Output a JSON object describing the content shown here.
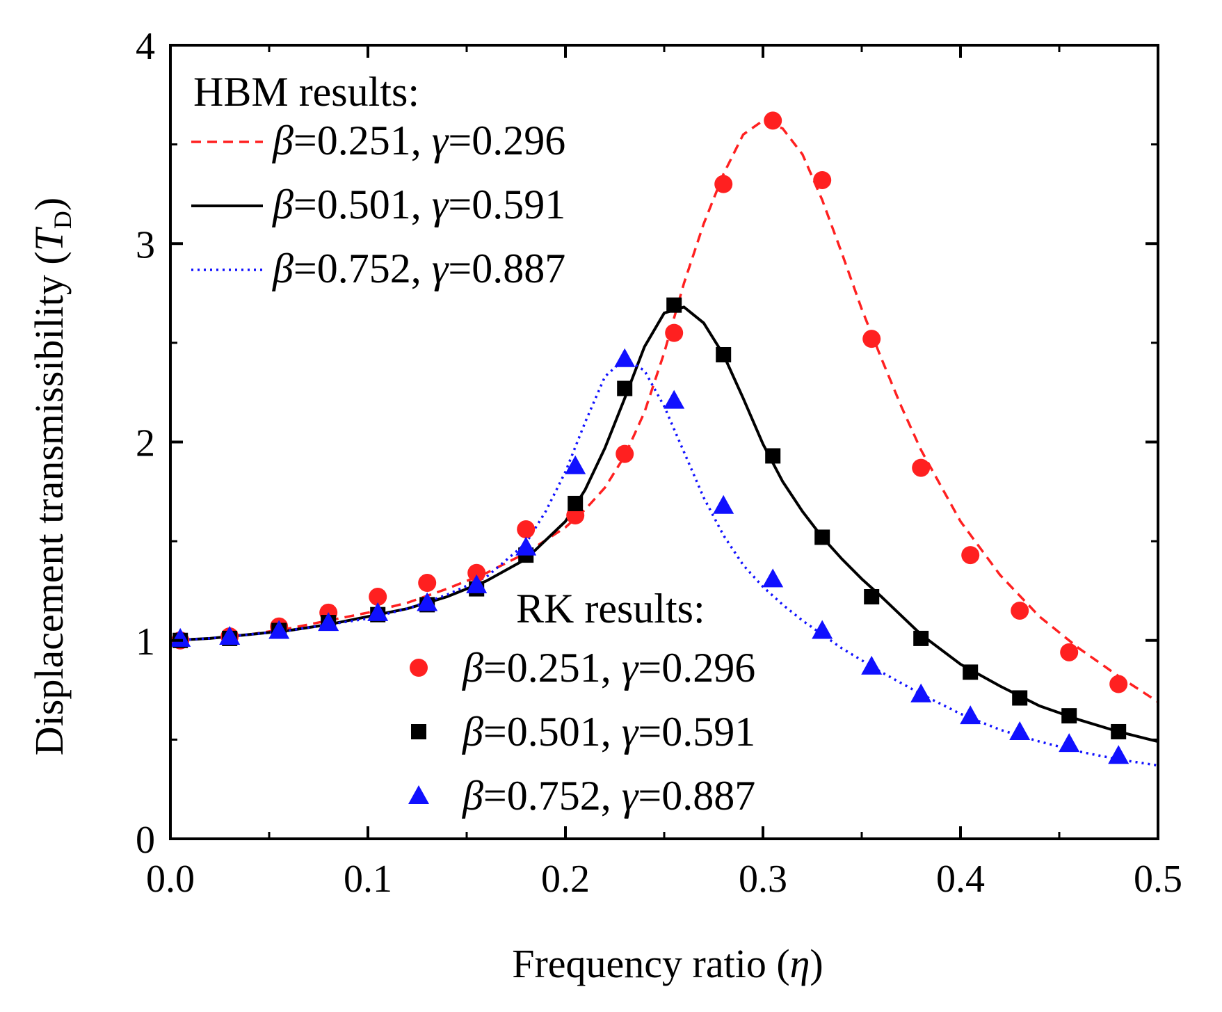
{
  "chart_data": {
    "type": "line",
    "xlabel_text": "Frequency ratio (",
    "xlabel_symbol": "η",
    "xlabel_close": ")",
    "ylabel_text": "Displacement transmissibility (",
    "ylabel_symbol": "T",
    "ylabel_sub": "D",
    "ylabel_close": ")",
    "xlim": [
      0.0,
      0.5
    ],
    "ylim": [
      0,
      4
    ],
    "x_ticks": [
      0.0,
      0.1,
      0.2,
      0.3,
      0.4,
      0.5
    ],
    "x_tick_labels": [
      "0.0",
      "0.1",
      "0.2",
      "0.3",
      "0.4",
      "0.5"
    ],
    "y_ticks": [
      0,
      1,
      2,
      3,
      4
    ],
    "y_tick_labels": [
      "0",
      "1",
      "2",
      "3",
      "4"
    ],
    "grid": false,
    "legend_hbm_title": "HBM results:",
    "legend_rk_title": "RK results:",
    "hbm_series": [
      {
        "beta": "β",
        "beta_val": "=0.251, ",
        "gamma": "γ",
        "gamma_val": "=0.296",
        "color": "#ff2020",
        "dash": "dashed",
        "x": [
          0.0,
          0.02,
          0.04,
          0.06,
          0.08,
          0.1,
          0.12,
          0.14,
          0.16,
          0.18,
          0.2,
          0.21,
          0.22,
          0.23,
          0.24,
          0.25,
          0.26,
          0.27,
          0.28,
          0.29,
          0.3,
          0.31,
          0.32,
          0.33,
          0.34,
          0.35,
          0.36,
          0.37,
          0.38,
          0.4,
          0.42,
          0.44,
          0.46,
          0.48,
          0.5
        ],
        "y": [
          1.0,
          1.01,
          1.03,
          1.06,
          1.1,
          1.14,
          1.19,
          1.26,
          1.34,
          1.44,
          1.57,
          1.66,
          1.77,
          1.93,
          2.15,
          2.45,
          2.8,
          3.1,
          3.35,
          3.55,
          3.62,
          3.58,
          3.45,
          3.22,
          2.95,
          2.67,
          2.42,
          2.18,
          1.96,
          1.6,
          1.33,
          1.12,
          0.96,
          0.82,
          0.69
        ]
      },
      {
        "beta": "β",
        "beta_val": "=0.501, ",
        "gamma": "γ",
        "gamma_val": "=0.591",
        "color": "#000000",
        "dash": "solid",
        "x": [
          0.0,
          0.02,
          0.04,
          0.06,
          0.08,
          0.1,
          0.12,
          0.14,
          0.16,
          0.18,
          0.2,
          0.21,
          0.22,
          0.23,
          0.24,
          0.25,
          0.26,
          0.27,
          0.28,
          0.29,
          0.3,
          0.31,
          0.32,
          0.33,
          0.34,
          0.35,
          0.36,
          0.38,
          0.4,
          0.42,
          0.44,
          0.46,
          0.48,
          0.5
        ],
        "y": [
          1.0,
          1.01,
          1.03,
          1.05,
          1.08,
          1.12,
          1.16,
          1.22,
          1.3,
          1.41,
          1.6,
          1.76,
          1.97,
          2.22,
          2.48,
          2.65,
          2.68,
          2.6,
          2.44,
          2.22,
          1.99,
          1.8,
          1.65,
          1.52,
          1.41,
          1.31,
          1.22,
          1.03,
          0.88,
          0.77,
          0.67,
          0.6,
          0.54,
          0.49
        ]
      },
      {
        "beta": "β",
        "beta_val": "=0.752, ",
        "gamma": "γ",
        "gamma_val": "=0.887",
        "color": "#1010ff",
        "dash": "dotted",
        "x": [
          0.0,
          0.02,
          0.04,
          0.06,
          0.08,
          0.1,
          0.12,
          0.14,
          0.16,
          0.18,
          0.19,
          0.2,
          0.21,
          0.22,
          0.23,
          0.24,
          0.25,
          0.26,
          0.27,
          0.28,
          0.29,
          0.3,
          0.31,
          0.32,
          0.33,
          0.34,
          0.36,
          0.38,
          0.4,
          0.42,
          0.44,
          0.46,
          0.48,
          0.5
        ],
        "y": [
          1.0,
          1.01,
          1.03,
          1.05,
          1.08,
          1.11,
          1.16,
          1.23,
          1.32,
          1.49,
          1.65,
          1.85,
          2.1,
          2.33,
          2.42,
          2.36,
          2.18,
          1.95,
          1.72,
          1.53,
          1.38,
          1.27,
          1.18,
          1.1,
          1.03,
          0.96,
          0.84,
          0.73,
          0.63,
          0.55,
          0.49,
          0.44,
          0.4,
          0.37
        ]
      }
    ],
    "rk_series": [
      {
        "beta": "β",
        "beta_val": "=0.251, ",
        "gamma": "γ",
        "gamma_val": "=0.296",
        "color": "#ff2020",
        "marker": "circle",
        "x": [
          0.005,
          0.03,
          0.055,
          0.08,
          0.105,
          0.13,
          0.155,
          0.18,
          0.205,
          0.23,
          0.255,
          0.28,
          0.305,
          0.33,
          0.355,
          0.38,
          0.405,
          0.43,
          0.455,
          0.48
        ],
        "y": [
          1.0,
          1.02,
          1.07,
          1.14,
          1.22,
          1.29,
          1.34,
          1.56,
          1.63,
          1.94,
          2.55,
          3.3,
          3.62,
          3.32,
          2.52,
          1.87,
          1.43,
          1.15,
          0.94,
          0.78
        ]
      },
      {
        "beta": "β",
        "beta_val": "=0.501, ",
        "gamma": "γ",
        "gamma_val": "=0.591",
        "color": "#000000",
        "marker": "square",
        "x": [
          0.005,
          0.03,
          0.055,
          0.08,
          0.105,
          0.13,
          0.155,
          0.18,
          0.205,
          0.23,
          0.255,
          0.28,
          0.305,
          0.33,
          0.355,
          0.38,
          0.405,
          0.43,
          0.455,
          0.48
        ],
        "y": [
          1.0,
          1.01,
          1.05,
          1.09,
          1.13,
          1.18,
          1.26,
          1.43,
          1.69,
          2.27,
          2.69,
          2.44,
          1.93,
          1.52,
          1.22,
          1.01,
          0.84,
          0.71,
          0.62,
          0.54
        ]
      },
      {
        "beta": "β",
        "beta_val": "=0.752, ",
        "gamma": "γ",
        "gamma_val": "=0.887",
        "color": "#1010ff",
        "marker": "triangle",
        "x": [
          0.005,
          0.03,
          0.055,
          0.08,
          0.105,
          0.13,
          0.155,
          0.18,
          0.205,
          0.23,
          0.255,
          0.28,
          0.305,
          0.33,
          0.355,
          0.38,
          0.405,
          0.43,
          0.455,
          0.48
        ],
        "y": [
          1.01,
          1.02,
          1.05,
          1.09,
          1.14,
          1.19,
          1.28,
          1.47,
          1.88,
          2.42,
          2.21,
          1.68,
          1.31,
          1.05,
          0.87,
          0.73,
          0.62,
          0.54,
          0.48,
          0.42
        ]
      }
    ]
  }
}
